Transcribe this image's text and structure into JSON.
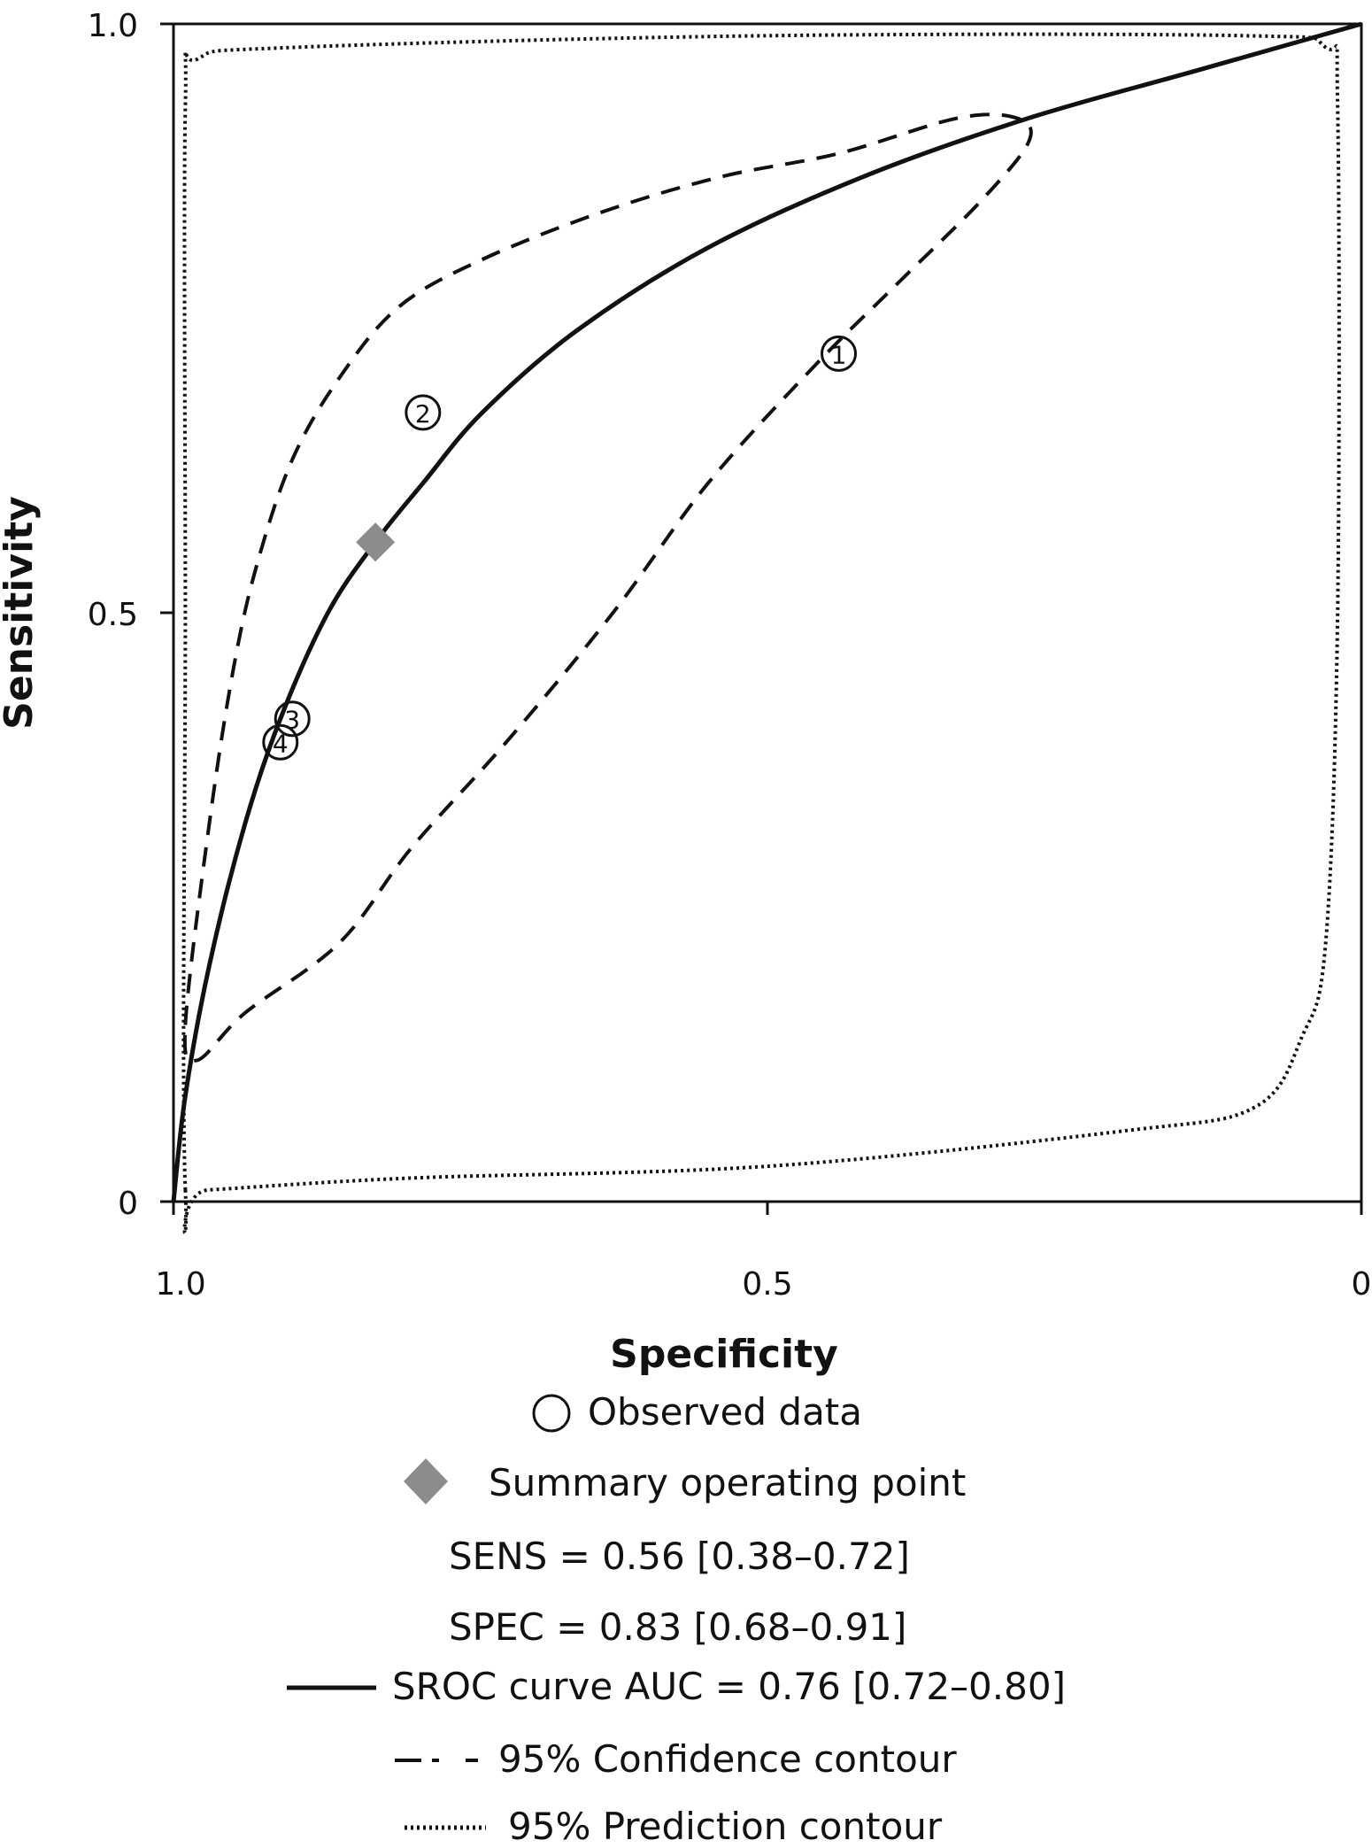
{
  "chart_data": {
    "type": "scatter",
    "xlabel": "Specificity",
    "ylabel": "Sensitivity",
    "xlim": [
      1.0,
      0
    ],
    "ylim": [
      0,
      1.0
    ],
    "x_ticks": [
      "1.0",
      "0.5",
      "0"
    ],
    "y_ticks": [
      "0",
      "0.5",
      "1.0"
    ],
    "grid": false,
    "legend_position": "bottom",
    "observed_data": [
      {
        "label": "1",
        "specificity": 0.44,
        "sensitivity": 0.72
      },
      {
        "label": "2",
        "specificity": 0.79,
        "sensitivity": 0.67
      },
      {
        "label": "3",
        "specificity": 0.9,
        "sensitivity": 0.41
      },
      {
        "label": "4",
        "specificity": 0.91,
        "sensitivity": 0.39
      }
    ],
    "summary_point": {
      "specificity": 0.83,
      "sensitivity": 0.56
    },
    "sroc_curve": [
      {
        "specificity": 1.0,
        "sensitivity": 0.0
      },
      {
        "specificity": 0.99,
        "sensitivity": 0.09
      },
      {
        "specificity": 0.97,
        "sensitivity": 0.2
      },
      {
        "specificity": 0.94,
        "sensitivity": 0.32
      },
      {
        "specificity": 0.91,
        "sensitivity": 0.41
      },
      {
        "specificity": 0.87,
        "sensitivity": 0.5
      },
      {
        "specificity": 0.83,
        "sensitivity": 0.56
      },
      {
        "specificity": 0.79,
        "sensitivity": 0.61
      },
      {
        "specificity": 0.74,
        "sensitivity": 0.67
      },
      {
        "specificity": 0.66,
        "sensitivity": 0.74
      },
      {
        "specificity": 0.55,
        "sensitivity": 0.81
      },
      {
        "specificity": 0.42,
        "sensitivity": 0.87
      },
      {
        "specificity": 0.28,
        "sensitivity": 0.92
      },
      {
        "specificity": 0.14,
        "sensitivity": 0.96
      },
      {
        "specificity": 0.0,
        "sensitivity": 1.0
      }
    ],
    "confidence_contour": [
      {
        "specificity": 0.99,
        "sensitivity": 0.15
      },
      {
        "specificity": 0.97,
        "sensitivity": 0.32
      },
      {
        "specificity": 0.95,
        "sensitivity": 0.45
      },
      {
        "specificity": 0.93,
        "sensitivity": 0.54
      },
      {
        "specificity": 0.9,
        "sensitivity": 0.63
      },
      {
        "specificity": 0.86,
        "sensitivity": 0.7
      },
      {
        "specificity": 0.81,
        "sensitivity": 0.76
      },
      {
        "specificity": 0.74,
        "sensitivity": 0.8
      },
      {
        "specificity": 0.64,
        "sensitivity": 0.84
      },
      {
        "specificity": 0.54,
        "sensitivity": 0.87
      },
      {
        "specificity": 0.44,
        "sensitivity": 0.89
      },
      {
        "specificity": 0.34,
        "sensitivity": 0.92
      },
      {
        "specificity": 0.29,
        "sensitivity": 0.92
      },
      {
        "specificity": 0.28,
        "sensitivity": 0.9
      },
      {
        "specificity": 0.32,
        "sensitivity": 0.85
      },
      {
        "specificity": 0.39,
        "sensitivity": 0.78
      },
      {
        "specificity": 0.46,
        "sensitivity": 0.71
      },
      {
        "specificity": 0.55,
        "sensitivity": 0.61
      },
      {
        "specificity": 0.63,
        "sensitivity": 0.5
      },
      {
        "specificity": 0.72,
        "sensitivity": 0.39
      },
      {
        "specificity": 0.8,
        "sensitivity": 0.3
      },
      {
        "specificity": 0.86,
        "sensitivity": 0.22
      },
      {
        "specificity": 0.94,
        "sensitivity": 0.16
      },
      {
        "specificity": 0.98,
        "sensitivity": 0.12
      },
      {
        "specificity": 0.99,
        "sensitivity": 0.15
      }
    ],
    "prediction_contour": [
      {
        "specificity": 0.99,
        "sensitivity": 0.01
      },
      {
        "specificity": 0.99,
        "sensitivity": 0.5
      },
      {
        "specificity": 0.99,
        "sensitivity": 0.93
      },
      {
        "specificity": 0.98,
        "sensitivity": 0.97
      },
      {
        "specificity": 0.9,
        "sensitivity": 0.98
      },
      {
        "specificity": 0.5,
        "sensitivity": 0.99
      },
      {
        "specificity": 0.1,
        "sensitivity": 0.99
      },
      {
        "specificity": 0.03,
        "sensitivity": 0.98
      },
      {
        "specificity": 0.02,
        "sensitivity": 0.93
      },
      {
        "specificity": 0.02,
        "sensitivity": 0.5
      },
      {
        "specificity": 0.03,
        "sensitivity": 0.22
      },
      {
        "specificity": 0.05,
        "sensitivity": 0.14
      },
      {
        "specificity": 0.09,
        "sensitivity": 0.08
      },
      {
        "specificity": 0.2,
        "sensitivity": 0.06
      },
      {
        "specificity": 0.5,
        "sensitivity": 0.03
      },
      {
        "specificity": 0.8,
        "sensitivity": 0.02
      },
      {
        "specificity": 0.97,
        "sensitivity": 0.01
      },
      {
        "specificity": 0.99,
        "sensitivity": 0.01
      }
    ],
    "legend": {
      "observed": "Observed data",
      "summary": "Summary operating point",
      "sens": "SENS = 0.56 [0.38–0.72]",
      "spec": "SPEC = 0.83 [0.68–0.91]",
      "sroc": "SROC curve AUC = 0.76 [0.72–0.80]",
      "confidence": "95% Confidence contour",
      "prediction": "95% Prediction contour"
    },
    "colors": {
      "line": "#111111",
      "summary_marker": "#8c8c8c"
    }
  }
}
